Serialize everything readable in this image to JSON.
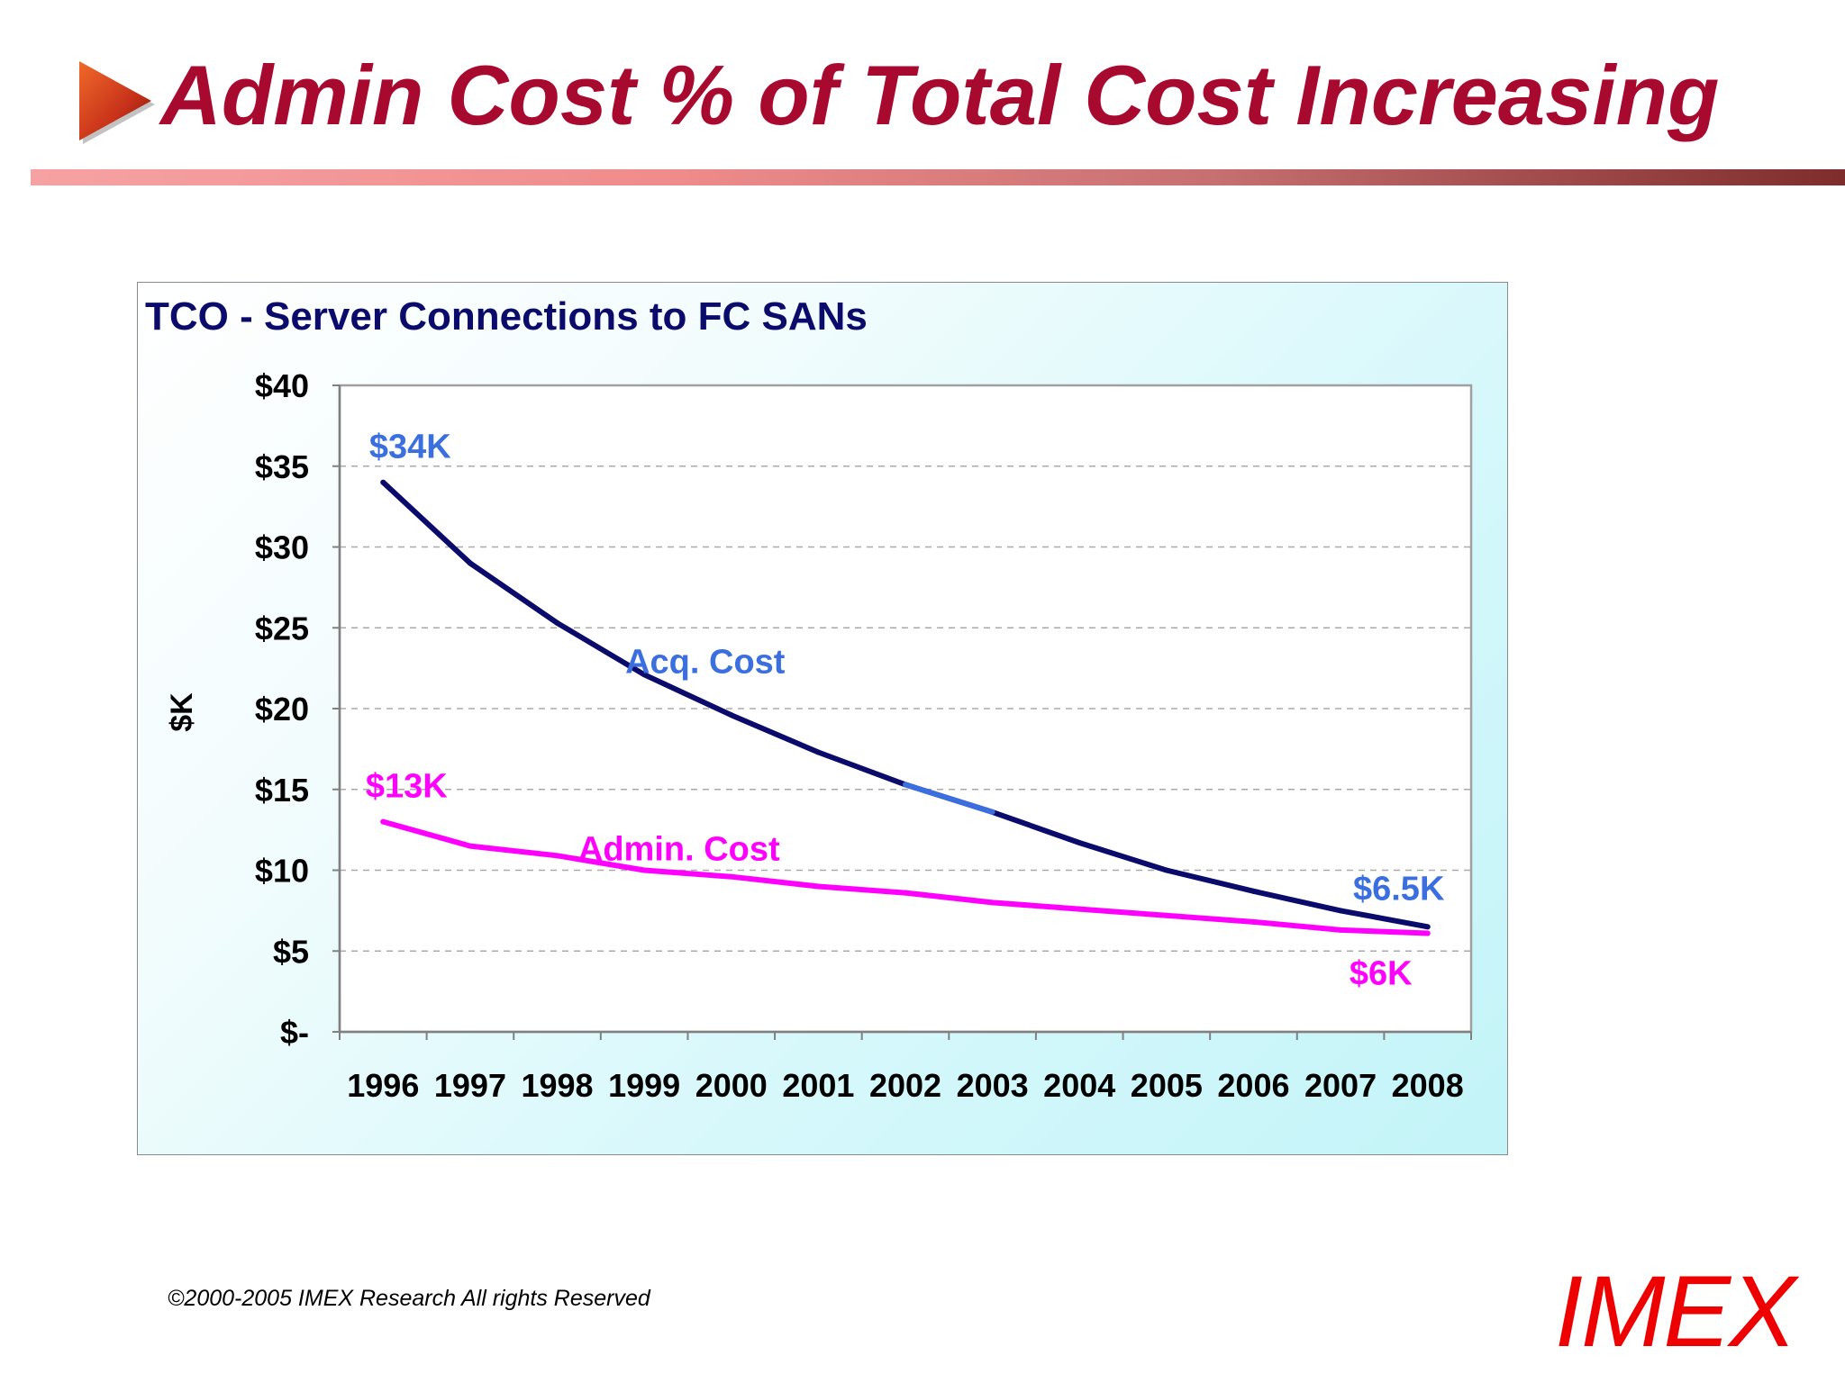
{
  "slide": {
    "title": "Admin Cost % of Total Cost Increasing",
    "copyright": "©2000-2005  IMEX Research All rights Reserved",
    "logo": "IMEX",
    "colors": {
      "title": "#a8092e",
      "arrow": "#c8321a",
      "logo": "#ee0000",
      "rule_start": "#f6a2a2",
      "rule_end": "#7e2c2c"
    }
  },
  "chart_data": {
    "type": "line",
    "title": "TCO - Server Connections to FC SANs",
    "ylabel": "$K",
    "xlabel": "",
    "ylim": [
      0,
      40
    ],
    "yticks": [
      0,
      5,
      10,
      15,
      20,
      25,
      30,
      35,
      40
    ],
    "ytick_labels": [
      "$-",
      "$5",
      "$10",
      "$15",
      "$20",
      "$25",
      "$30",
      "$35",
      "$40"
    ],
    "categories": [
      "1996",
      "1997",
      "1998",
      "1999",
      "2000",
      "2001",
      "2002",
      "2003",
      "2004",
      "2005",
      "2006",
      "2007",
      "2008"
    ],
    "grid": true,
    "legend": "none",
    "series": [
      {
        "name": "Acq. Cost",
        "color": "#0b0b6b",
        "label_color": "#3b6fe0",
        "values": [
          34,
          29,
          25.3,
          22.1,
          19.6,
          17.3,
          15.3,
          13.6,
          11.7,
          10.0,
          8.7,
          7.5,
          6.5
        ]
      },
      {
        "name": "Admin. Cost",
        "color": "#ff00ff",
        "label_color": "#ff00ff",
        "values": [
          13,
          11.5,
          10.9,
          10.0,
          9.6,
          9.0,
          8.6,
          8.0,
          7.6,
          7.2,
          6.8,
          6.3,
          6.1
        ]
      }
    ],
    "annotations": [
      {
        "text": "$34K",
        "color": "#3b6fe0"
      },
      {
        "text": "$13K",
        "color": "#ff00ff"
      },
      {
        "text": "$6.5K",
        "color": "#3b6fe0"
      },
      {
        "text": "$6K",
        "color": "#ff00ff"
      }
    ],
    "highlight_segment": {
      "series": "Acq. Cost",
      "from": "2002",
      "to": "2003",
      "color": "#3b6fe0"
    },
    "colors": {
      "title": "#0b0b6b",
      "axis_text": "#000000",
      "grid": "#aaaaaa",
      "background": "#d6f8fb"
    }
  }
}
